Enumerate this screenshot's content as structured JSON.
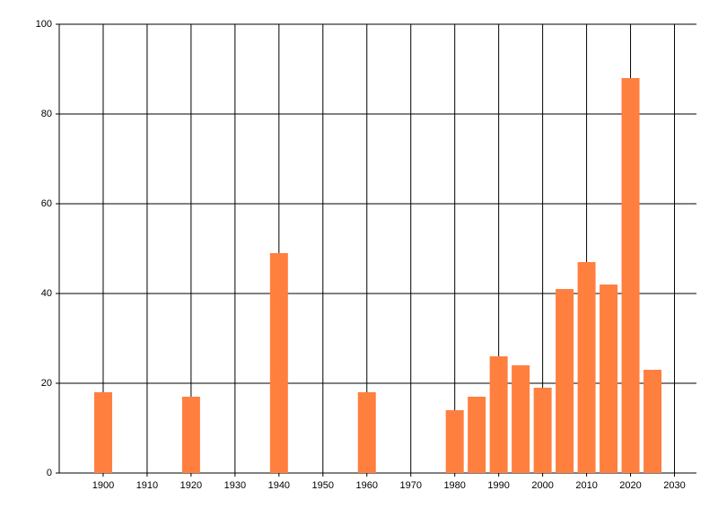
{
  "chart_data": {
    "type": "bar",
    "x": [
      1900,
      1920,
      1940,
      1960,
      1980,
      1985,
      1990,
      1995,
      2000,
      2005,
      2010,
      2015,
      2020,
      2025
    ],
    "values": [
      18,
      17,
      49,
      18,
      14,
      17,
      26,
      24,
      19,
      41,
      47,
      42,
      88,
      23
    ],
    "color": "#ff7f3f",
    "xlim": [
      1890,
      2035
    ],
    "xticks": [
      1900,
      1910,
      1920,
      1930,
      1940,
      1950,
      1960,
      1970,
      1980,
      1990,
      2000,
      2010,
      2020,
      2030
    ],
    "ylim": [
      0,
      100
    ],
    "yticks": [
      0,
      20,
      40,
      60,
      80,
      100
    ],
    "grid": true
  }
}
